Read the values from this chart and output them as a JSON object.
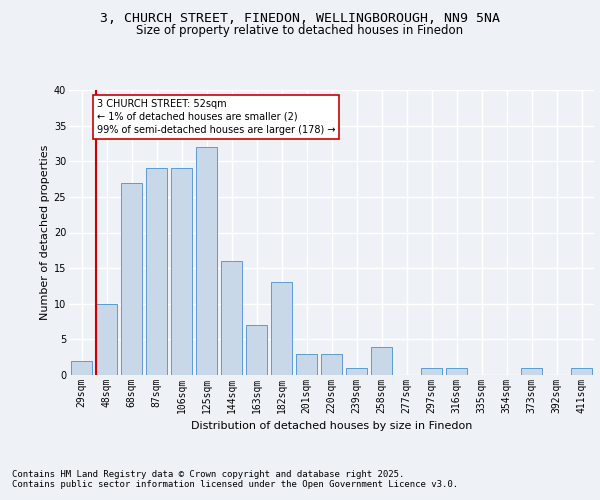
{
  "title_line1": "3, CHURCH STREET, FINEDON, WELLINGBOROUGH, NN9 5NA",
  "title_line2": "Size of property relative to detached houses in Finedon",
  "xlabel": "Distribution of detached houses by size in Finedon",
  "ylabel": "Number of detached properties",
  "footer_line1": "Contains HM Land Registry data © Crown copyright and database right 2025.",
  "footer_line2": "Contains public sector information licensed under the Open Government Licence v3.0.",
  "categories": [
    "29sqm",
    "48sqm",
    "68sqm",
    "87sqm",
    "106sqm",
    "125sqm",
    "144sqm",
    "163sqm",
    "182sqm",
    "201sqm",
    "220sqm",
    "239sqm",
    "258sqm",
    "277sqm",
    "297sqm",
    "316sqm",
    "335sqm",
    "354sqm",
    "373sqm",
    "392sqm",
    "411sqm"
  ],
  "values": [
    2,
    10,
    27,
    29,
    29,
    32,
    16,
    7,
    13,
    3,
    3,
    1,
    4,
    0,
    1,
    1,
    0,
    0,
    1,
    0,
    1
  ],
  "bar_color": "#c8d8e8",
  "bar_edge_color": "#5b9bd5",
  "annotation_box_text": "3 CHURCH STREET: 52sqm\n← 1% of detached houses are smaller (2)\n99% of semi-detached houses are larger (178) →",
  "annotation_box_color": "#ffffff",
  "annotation_box_edge_color": "#cc0000",
  "vline_color": "#cc0000",
  "vline_x_index": 1,
  "ylim": [
    0,
    40
  ],
  "background_color": "#eef2f7",
  "plot_bg_color": "#eef2f7",
  "grid_color": "#ffffff",
  "title_fontsize": 9.5,
  "subtitle_fontsize": 8.5,
  "axis_label_fontsize": 8,
  "tick_fontsize": 7,
  "footer_fontsize": 6.5,
  "annotation_fontsize": 7
}
